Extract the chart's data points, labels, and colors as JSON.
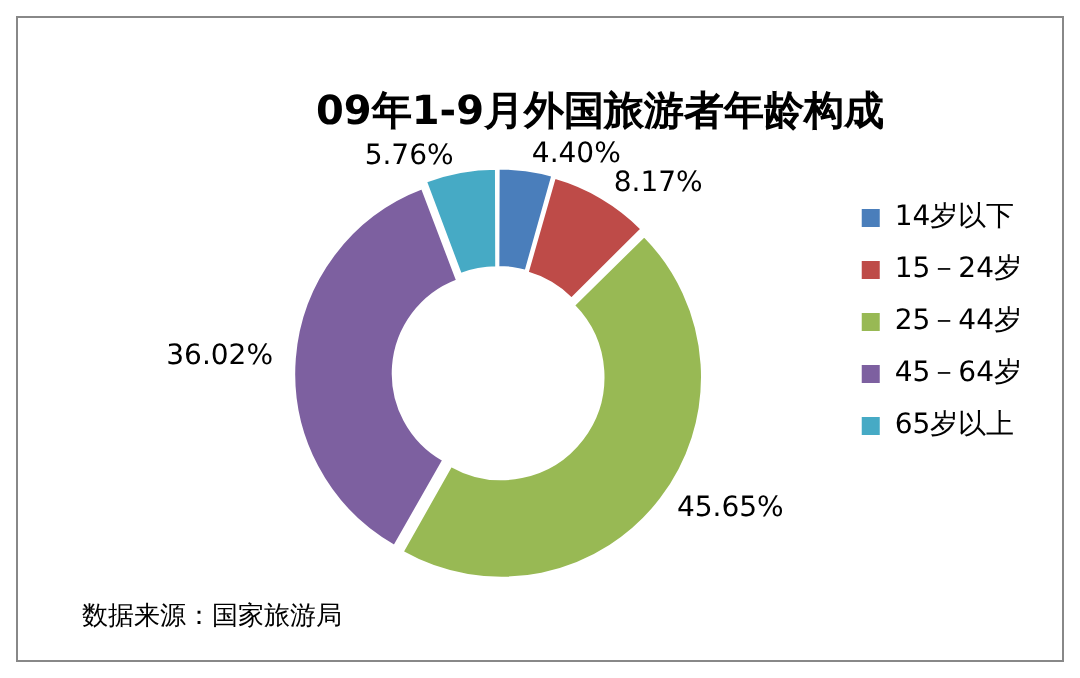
{
  "chart_data": {
    "type": "donut",
    "title": "09年1-9月外国旅游者年龄构成",
    "categories": [
      "14岁以下",
      "15－24岁",
      "25－44岁",
      "45－64岁",
      "65岁以上"
    ],
    "values": [
      4.4,
      8.17,
      45.65,
      36.02,
      5.76
    ],
    "value_labels": [
      "4.40%",
      "8.17%",
      "45.65%",
      "36.02%",
      "5.76%"
    ],
    "colors": [
      "#4a7ebb",
      "#be4b48",
      "#98b954",
      "#7d60a0",
      "#46aac5"
    ],
    "legend": "right",
    "annotations": [
      "数据来源：国家旅游局"
    ]
  }
}
